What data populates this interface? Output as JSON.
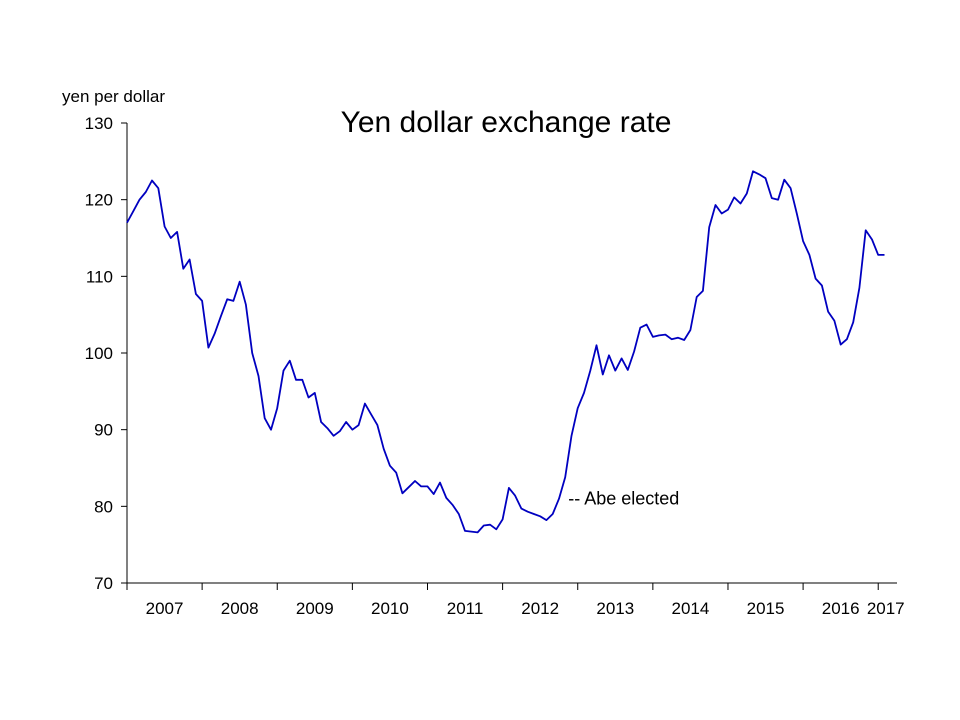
{
  "chart_data": {
    "type": "line",
    "title": "Yen dollar exchange rate",
    "ylabel": "yen per dollar",
    "ylim": [
      70,
      130
    ],
    "xlim": [
      2007.0,
      2017.25
    ],
    "yticks": [
      70,
      80,
      90,
      100,
      110,
      120,
      130
    ],
    "ytick_labels": [
      "70",
      "80",
      "90",
      "100",
      "110",
      "120",
      "130"
    ],
    "xticks": [
      2007,
      2008,
      2009,
      2010,
      2011,
      2012,
      2013,
      2014,
      2015,
      2016,
      2017
    ],
    "xtick_labels": [
      "2007",
      "2008",
      "2009",
      "2010",
      "2011",
      "2012",
      "2013",
      "2014",
      "2015",
      "2016",
      "2017"
    ],
    "color": "#0000c0",
    "annotation": {
      "text": "-- Abe elected",
      "x": 2012.9,
      "y": 81
    },
    "series": [
      {
        "values": [
          117.0,
          118.5,
          120.0,
          121.0,
          122.5,
          121.5,
          116.5,
          115.0,
          115.8,
          111.0,
          112.2,
          107.7,
          106.8,
          100.7,
          102.5,
          104.8,
          107.0,
          106.8,
          109.3,
          106.3,
          100.0,
          97.0,
          91.5,
          90.0,
          92.8,
          97.7,
          99.0,
          96.5,
          96.5,
          94.2,
          94.8,
          91.0,
          90.2,
          89.2,
          89.8,
          91.0,
          90.0,
          90.6,
          93.4,
          92.0,
          90.6,
          87.5,
          85.3,
          84.4,
          81.7,
          82.5,
          83.3,
          82.6,
          82.6,
          81.6,
          83.1,
          81.1,
          80.2,
          79.0,
          76.8,
          76.7,
          76.6,
          77.5,
          77.6,
          77.0,
          78.3,
          82.4,
          81.4,
          79.7,
          79.3,
          79.0,
          78.7,
          78.2,
          79.0,
          81.0,
          83.8,
          89.2,
          92.8,
          94.8,
          97.7,
          101.0,
          97.2,
          99.7,
          97.7,
          99.3,
          97.8,
          100.2,
          103.3,
          103.7,
          102.1,
          102.3,
          102.4,
          101.8,
          102.0,
          101.7,
          103.0,
          107.3,
          108.1,
          116.4,
          119.3,
          118.2,
          118.7,
          120.3,
          119.5,
          120.8,
          123.7,
          123.3,
          122.8,
          120.2,
          120.0,
          122.6,
          121.5,
          118.2,
          114.6,
          112.8,
          109.7,
          108.8,
          105.4,
          104.2,
          101.1,
          101.8,
          104.0,
          108.5,
          116.0,
          114.8,
          112.8,
          112.8
        ],
        "start": 2007.0,
        "months_per_step": 1
      }
    ]
  }
}
